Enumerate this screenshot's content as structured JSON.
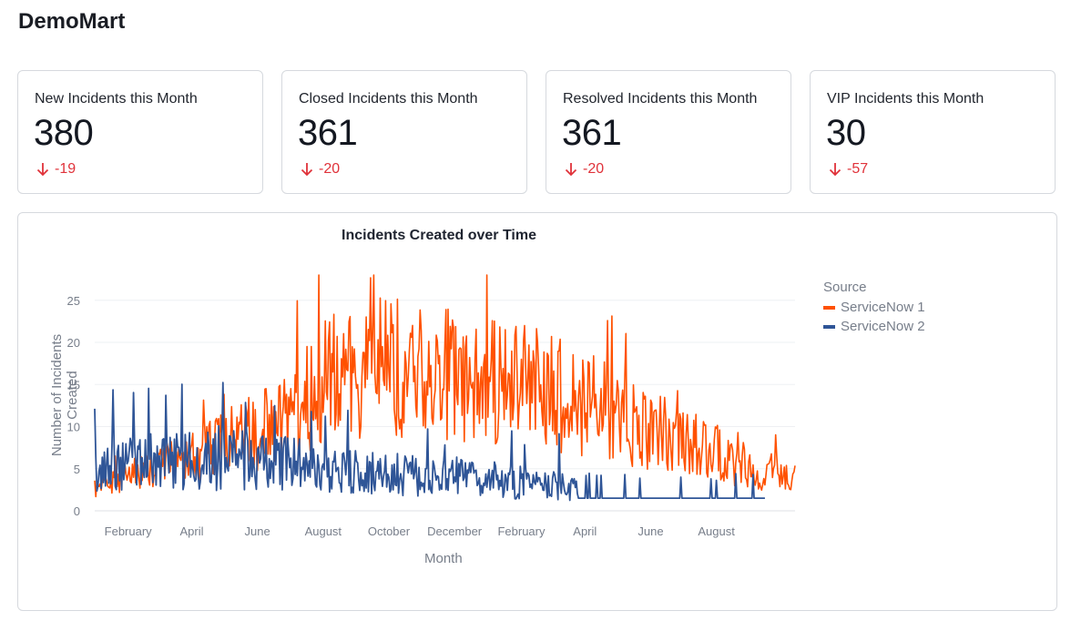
{
  "app": {
    "title": "DemoMart"
  },
  "kpis": [
    {
      "label": "New Incidents this Month",
      "value": "380",
      "delta": "-19"
    },
    {
      "label": "Closed Incidents this Month",
      "value": "361",
      "delta": "-20"
    },
    {
      "label": "Resolved Incidents this Month",
      "value": "361",
      "delta": "-20"
    },
    {
      "label": "VIP Incidents this Month",
      "value": "30",
      "delta": "-57"
    }
  ],
  "colors": {
    "series1": "#ff5100",
    "series2": "#2f5597",
    "negative": "#e0323a",
    "grid": "#eef0f3"
  },
  "chart_data": {
    "type": "line",
    "title": "Incidents Created over Time",
    "xlabel": "Month",
    "ylabel": "Number of Incidents Created",
    "x_range": [
      "2021-01-01",
      "2022-10-13"
    ],
    "ylim": [
      0,
      28
    ],
    "yticks": [
      0,
      5,
      10,
      15,
      20,
      25
    ],
    "xticks": [
      {
        "date": "2021-02-01",
        "label": "February"
      },
      {
        "date": "2021-04-01",
        "label": "April"
      },
      {
        "date": "2021-06-01",
        "label": "June"
      },
      {
        "date": "2021-08-01",
        "label": "August"
      },
      {
        "date": "2021-10-01",
        "label": "October"
      },
      {
        "date": "2021-12-01",
        "label": "December"
      },
      {
        "date": "2022-02-01",
        "label": "February"
      },
      {
        "date": "2022-04-01",
        "label": "April"
      },
      {
        "date": "2022-06-01",
        "label": "June"
      },
      {
        "date": "2022-08-01",
        "label": "August"
      }
    ],
    "legend": {
      "title": "Source",
      "placement": "right"
    },
    "grid": true,
    "series": [
      {
        "name": "ServiceNow 1",
        "color": "#ff5100",
        "values": [
          {
            "date": "2021-01-01",
            "trend": 3
          },
          {
            "date": "2021-03-01",
            "trend": 5
          },
          {
            "date": "2021-05-01",
            "trend": 8
          },
          {
            "date": "2021-06-15",
            "trend": 10
          },
          {
            "date": "2021-07-15",
            "trend": 13
          },
          {
            "date": "2021-08-15",
            "trend": 17
          },
          {
            "date": "2021-09-15",
            "trend": 17
          },
          {
            "date": "2021-11-01",
            "trend": 16
          },
          {
            "date": "2021-12-15",
            "trend": 16
          },
          {
            "date": "2022-02-01",
            "trend": 15
          },
          {
            "date": "2022-03-01",
            "trend": 14
          },
          {
            "date": "2022-04-01",
            "trend": 13
          },
          {
            "date": "2022-05-01",
            "trend": 11
          },
          {
            "date": "2022-06-15",
            "trend": 9
          },
          {
            "date": "2022-08-01",
            "trend": 7
          },
          {
            "date": "2022-09-01",
            "trend": 5
          },
          {
            "date": "2022-10-13",
            "trend": 4
          }
        ]
      },
      {
        "name": "ServiceNow 2",
        "color": "#2f5597",
        "values": [
          {
            "date": "2021-01-01",
            "trend": 5
          },
          {
            "date": "2021-03-01",
            "trend": 6
          },
          {
            "date": "2021-05-01",
            "trend": 6
          },
          {
            "date": "2021-06-15",
            "trend": 6
          },
          {
            "date": "2021-08-01",
            "trend": 5
          },
          {
            "date": "2021-09-15",
            "trend": 4.5
          },
          {
            "date": "2021-11-01",
            "trend": 4
          },
          {
            "date": "2021-12-15",
            "trend": 4
          },
          {
            "date": "2022-01-15",
            "trend": 3.5
          },
          {
            "date": "2022-03-01",
            "trend": 3
          },
          {
            "date": "2022-03-25",
            "trend": 2.5
          },
          {
            "date": "2022-04-20",
            "trend": 2
          },
          {
            "date": "2022-06-01",
            "trend": 2
          },
          {
            "date": "2022-09-15",
            "trend": 2
          }
        ]
      }
    ]
  }
}
